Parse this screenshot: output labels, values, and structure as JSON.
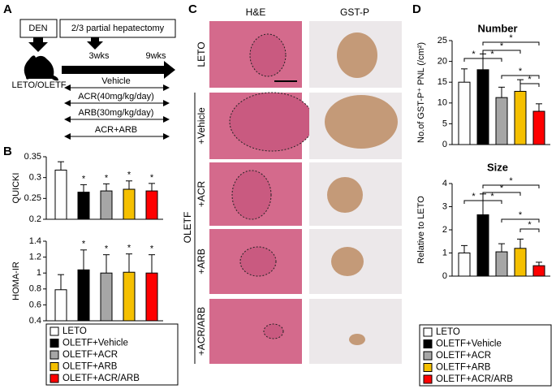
{
  "panels": {
    "a": "A",
    "b": "B",
    "c": "C",
    "d": "D"
  },
  "schema": {
    "den": "DEN",
    "surgery": "2/3 partial hepatectomy",
    "week_start": "3wks",
    "week_end": "9wks",
    "animals": "LETO/OLETF",
    "treatments": [
      "Vehicle",
      "ACR(40mg/kg/day)",
      "ARB(30mg/kg/day)",
      "ACR+ARB"
    ]
  },
  "histology": {
    "columns": [
      "H&E",
      "GST-P"
    ],
    "rows": [
      "LETO",
      "+Vehicle",
      "+ACR",
      "+ARB",
      "+ACR/ARB"
    ],
    "group_label": "OLETF"
  },
  "groups": {
    "names": [
      "LETO",
      "OLETF+Vehicle",
      "OLETF+ACR",
      "OLETF+ARB",
      "OLETF+ACR/ARB"
    ],
    "colors": [
      "#ffffff",
      "#000000",
      "#a6a6a6",
      "#f5c000",
      "#ff0000"
    ]
  },
  "chart_data": [
    {
      "type": "bar",
      "ylabel": "QUICKI",
      "values": [
        0.318,
        0.265,
        0.268,
        0.272,
        0.268
      ],
      "errors": [
        0.02,
        0.018,
        0.017,
        0.02,
        0.018
      ],
      "ylim": [
        0.2,
        0.35
      ],
      "yticks": [
        0.2,
        0.25,
        0.3,
        0.35
      ],
      "stars": [
        null,
        "*",
        "*",
        "*",
        "*"
      ]
    },
    {
      "type": "bar",
      "ylabel": "HOMA-IR",
      "values": [
        0.79,
        1.04,
        1.0,
        1.01,
        1.0
      ],
      "errors": [
        0.19,
        0.25,
        0.23,
        0.23,
        0.23
      ],
      "ylim": [
        0.4,
        1.4
      ],
      "yticks": [
        0.4,
        0.6,
        0.8,
        1,
        1.2,
        1.4
      ],
      "stars": [
        null,
        "*",
        "*",
        "*",
        "*"
      ]
    },
    {
      "type": "bar",
      "title": "Number",
      "ylabel": "No.of GST-P⁺ PNL (/cm²)",
      "values": [
        15,
        18,
        11.3,
        12.8,
        8
      ],
      "errors": [
        3.2,
        3.8,
        2.5,
        2.8,
        1.8
      ],
      "ylim": [
        0,
        25
      ],
      "yticks": [
        0,
        5,
        10,
        15,
        20,
        25
      ],
      "brackets": [
        {
          "between": [
            0,
            1
          ],
          "label": "*"
        },
        {
          "between": [
            1,
            2
          ],
          "label": "*"
        },
        {
          "between": [
            1,
            3
          ],
          "label": "*"
        },
        {
          "between": [
            1,
            4
          ],
          "label": "*"
        },
        {
          "between": [
            2,
            4
          ],
          "label": "*"
        },
        {
          "between": [
            3,
            4
          ],
          "label": "*"
        }
      ]
    },
    {
      "type": "bar",
      "title": "Size",
      "ylabel": "Relative to LETO",
      "values": [
        1.0,
        2.65,
        1.05,
        1.2,
        0.45
      ],
      "errors": [
        0.32,
        0.9,
        0.35,
        0.4,
        0.15
      ],
      "ylim": [
        0,
        4
      ],
      "yticks": [
        0,
        1,
        2,
        3,
        4
      ],
      "brackets": [
        {
          "between": [
            0,
            1
          ],
          "label": "*"
        },
        {
          "between": [
            1,
            2
          ],
          "label": "*"
        },
        {
          "between": [
            1,
            3
          ],
          "label": "*"
        },
        {
          "between": [
            1,
            4
          ],
          "label": "*"
        },
        {
          "between": [
            2,
            4
          ],
          "label": "*"
        },
        {
          "between": [
            3,
            4
          ],
          "label": "*"
        }
      ]
    }
  ]
}
